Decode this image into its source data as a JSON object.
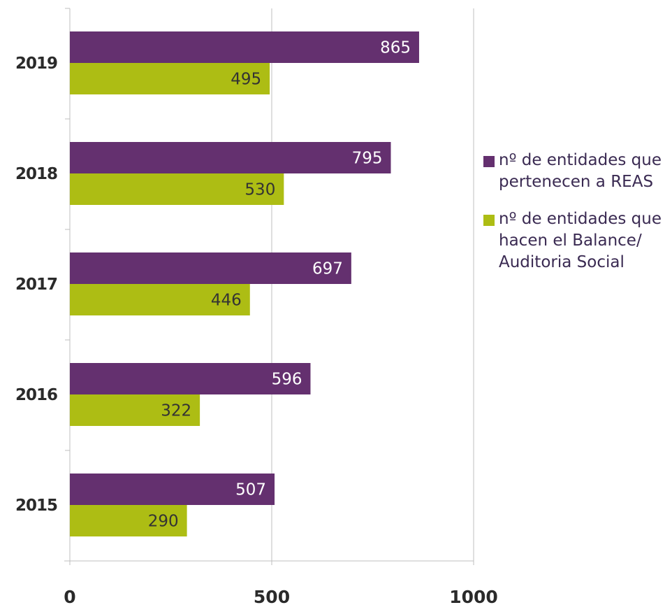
{
  "chart_data": {
    "type": "bar",
    "orientation": "horizontal",
    "categories": [
      "2019",
      "2018",
      "2017",
      "2016",
      "2015"
    ],
    "series": [
      {
        "name": "nº de entidades que pertenecen a REAS",
        "color": "#64306f",
        "values": [
          865,
          795,
          697,
          596,
          507
        ]
      },
      {
        "name": "nº de entidades que hacen el Balance/ Auditoria Social",
        "color": "#adbd14",
        "values": [
          495,
          530,
          446,
          322,
          290
        ]
      }
    ],
    "x_ticks": [
      "0",
      "500",
      "1000"
    ],
    "xlim": [
      0,
      1000
    ],
    "grid": "vertical",
    "legend_position": "right",
    "title": "",
    "xlabel": "",
    "ylabel": ""
  }
}
